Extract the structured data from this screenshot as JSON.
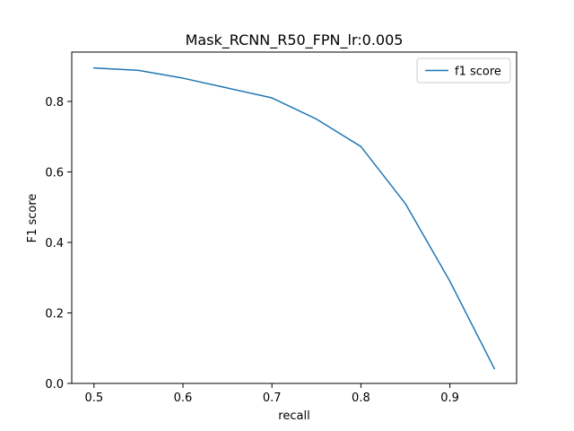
{
  "chart_data": {
    "type": "line",
    "title": "Mask_RCNN_R50_FPN_lr:0.005",
    "xlabel": "recall",
    "ylabel": "F1 score",
    "xlim": [
      0.475,
      0.975
    ],
    "ylim": [
      0.0,
      0.94
    ],
    "xticks": [
      0.5,
      0.6,
      0.7,
      0.8,
      0.9
    ],
    "xtick_labels": [
      "0.5",
      "0.6",
      "0.7",
      "0.8",
      "0.9"
    ],
    "yticks": [
      0.0,
      0.2,
      0.4,
      0.6,
      0.8
    ],
    "ytick_labels": [
      "0.0",
      "0.2",
      "0.4",
      "0.6",
      "0.8"
    ],
    "grid": false,
    "legend_position": "top-right",
    "series": [
      {
        "name": "f1 score",
        "color": "#1f77b4",
        "x": [
          0.5,
          0.55,
          0.6,
          0.65,
          0.7,
          0.75,
          0.8,
          0.85,
          0.9,
          0.95
        ],
        "y": [
          0.895,
          0.888,
          0.866,
          0.838,
          0.81,
          0.75,
          0.672,
          0.51,
          0.29,
          0.042
        ]
      }
    ]
  }
}
